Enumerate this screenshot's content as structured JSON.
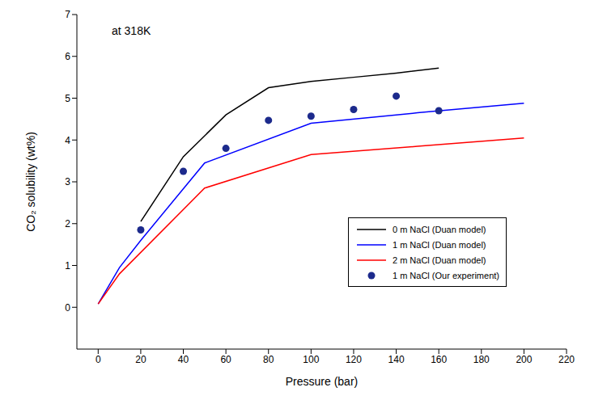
{
  "chart_data": {
    "type": "line",
    "annotation": "at 318K",
    "x_label": "Pressure (bar)",
    "y_label": "CO₂ solubility (wt%)",
    "xlim": [
      -10,
      220
    ],
    "xticks": [
      0,
      20,
      40,
      60,
      80,
      100,
      120,
      140,
      160,
      180,
      200,
      220
    ],
    "ylim": [
      -1,
      7
    ],
    "yticks": [
      0,
      1,
      2,
      3,
      4,
      5,
      6,
      7
    ],
    "grid": false,
    "legend": "lower right",
    "series": [
      {
        "name": "0 m NaCl (Duan model)",
        "type": "line",
        "line_style": "solid",
        "color": "#000000",
        "x": [
          20,
          40,
          60,
          80,
          100,
          120,
          140,
          160
        ],
        "values": [
          2.05,
          3.6,
          4.6,
          5.25,
          5.4,
          5.5,
          5.6,
          5.72
        ]
      },
      {
        "name": "1 m NaCl (Duan model)",
        "type": "line",
        "line_style": "solid",
        "color": "#0000ff",
        "x": [
          0,
          10,
          20,
          50,
          100,
          150,
          200
        ],
        "values": [
          0.08,
          0.95,
          1.6,
          3.45,
          4.4,
          4.65,
          4.88
        ]
      },
      {
        "name": "2 m NaCl (Duan model)",
        "type": "line",
        "line_style": "solid",
        "color": "#ff0000",
        "x": [
          0,
          10,
          50,
          100,
          150,
          200
        ],
        "values": [
          0.08,
          0.8,
          2.85,
          3.65,
          3.85,
          4.05
        ]
      },
      {
        "name": "1 m NaCl (Our experiment)",
        "type": "scatter",
        "marker": "circle",
        "color": "#1c2a8c",
        "x": [
          20,
          40,
          60,
          80,
          100,
          120,
          140,
          160
        ],
        "values": [
          1.85,
          3.25,
          3.8,
          4.47,
          4.57,
          4.73,
          5.05,
          4.7
        ]
      }
    ]
  }
}
